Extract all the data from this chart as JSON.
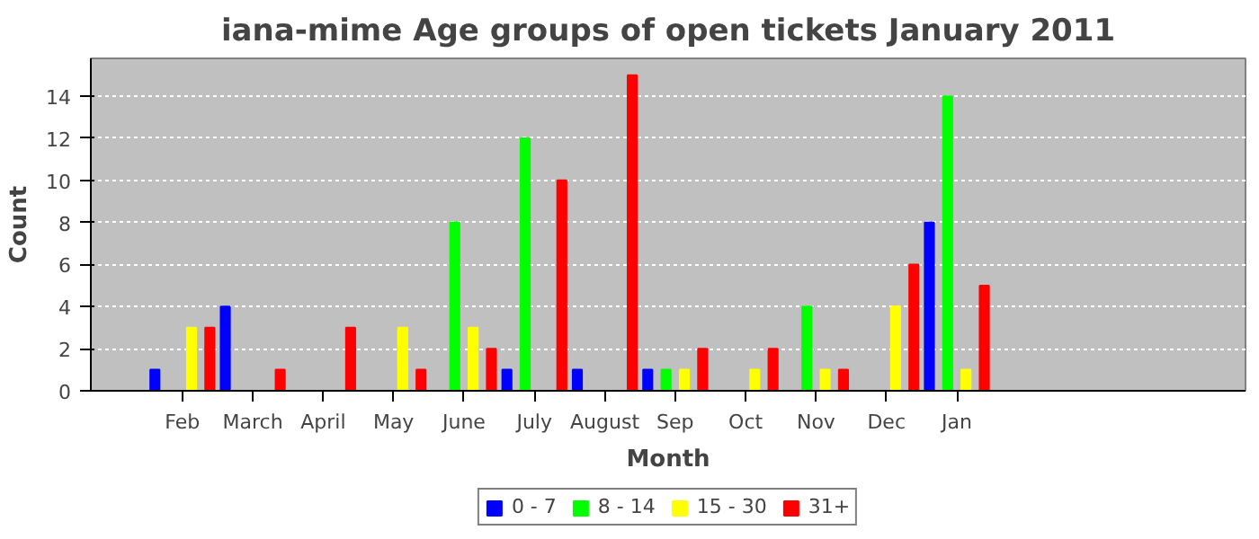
{
  "chart_data": {
    "type": "bar",
    "title": "iana-mime Age groups of open tickets January 2011",
    "xlabel": "Month",
    "ylabel": "Count",
    "categories": [
      "Feb",
      "March",
      "April",
      "May",
      "June",
      "July",
      "August",
      "Sep",
      "Oct",
      "Nov",
      "Dec",
      "Jan"
    ],
    "series": [
      {
        "name": "0 - 7",
        "color": "#0000ff",
        "values": [
          1,
          4,
          0,
          0,
          0,
          1,
          1,
          1,
          0,
          0,
          0,
          8
        ]
      },
      {
        "name": "8 - 14",
        "color": "#00ff00",
        "values": [
          0,
          0,
          0,
          0,
          8,
          12,
          0,
          1,
          0,
          4,
          0,
          14
        ]
      },
      {
        "name": "15 - 30",
        "color": "#ffff00",
        "values": [
          3,
          0,
          0,
          3,
          3,
          0,
          0,
          1,
          1,
          1,
          4,
          1
        ]
      },
      {
        "name": "31+",
        "color": "#ff0000",
        "values": [
          3,
          1,
          3,
          1,
          2,
          10,
          15,
          2,
          2,
          1,
          6,
          5
        ]
      }
    ],
    "ylim": [
      0,
      15.8
    ],
    "yticks": [
      0,
      2,
      4,
      6,
      8,
      10,
      12,
      14
    ],
    "grid": "y",
    "legend": "bottom"
  }
}
